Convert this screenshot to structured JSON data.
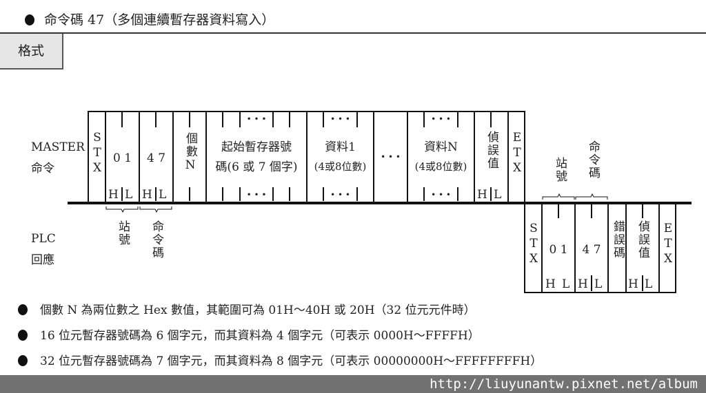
{
  "title": "命令碼 47（多個連續暫存器資料寫入）",
  "format_tab": "格式",
  "labels": {
    "master": "MASTER",
    "master_cmd": "命令",
    "plc": "PLC",
    "plc_resp": "回應"
  },
  "master_frame": {
    "stx": "STX",
    "station": "0 1",
    "cmd": "4 7",
    "h": "H",
    "l": "L",
    "count": "個數N",
    "start_l1": "起始暫存器號",
    "start_l2": "碼(6 或 7 個字)",
    "data1_l1": "資料1",
    "data1_l2": "(4或8位數)",
    "ellipsis": "• • •",
    "dataN_l1": "資料N",
    "dataN_l2": "(4或8位數)",
    "lrc": "偵誤值",
    "etx": "ETX"
  },
  "braces": {
    "station": "站號",
    "cmd": "命令碼"
  },
  "plc_frame": {
    "stx": "STX",
    "station": "0 1",
    "cmd": "4 7",
    "err": "錯誤碼",
    "lrc": "偵誤值",
    "etx": "ETX"
  },
  "bullets": [
    "個數 N 為兩位數之 Hex 數值，其範圍可為 01H～40H 或 20H（32 位元元件時）",
    "16 位元暫存器號碼為 6 個字元，而其資料為 4 個字元（可表示 0000H～FFFFH）",
    "32 位元暫存器號碼為 7 個字元，而其資料為 8 個字元（可表示 00000000H～FFFFFFFFH）"
  ],
  "watermark": "http://liuyunantw.pixnet.net/album"
}
